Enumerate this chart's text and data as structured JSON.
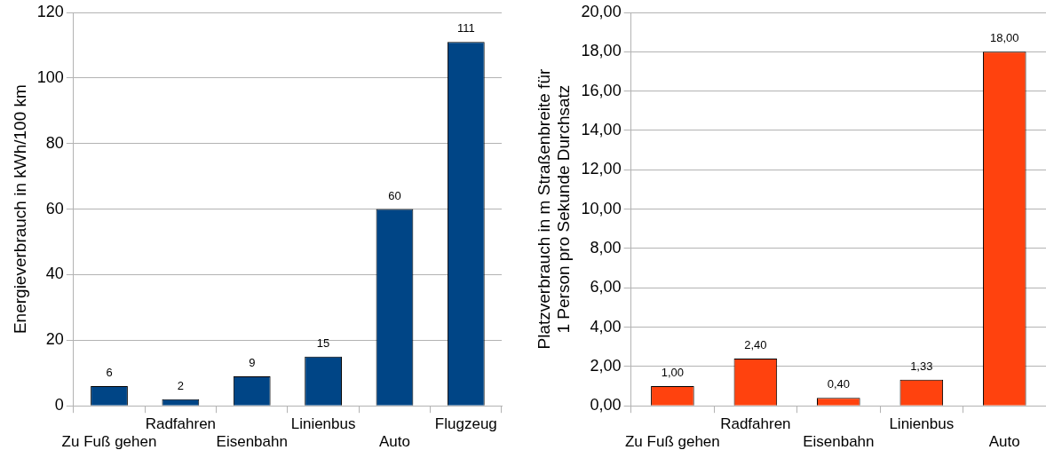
{
  "chart_data": [
    {
      "type": "bar",
      "ylabel": "Energieverbrauch in kWh/100 km",
      "categories": [
        "Zu Fuß gehen",
        "Radfahren",
        "Eisenbahn",
        "Linienbus",
        "Auto",
        "Flugzeug"
      ],
      "values": [
        6,
        2,
        9,
        15,
        60,
        111
      ],
      "color": "#004586",
      "ylim": [
        0,
        120
      ],
      "yticks": [
        0,
        20,
        40,
        60,
        80,
        100,
        120
      ],
      "grid": "y",
      "legend": false,
      "data_labels": true
    },
    {
      "type": "bar",
      "ylabel": "Platzverbrauch in m Straßenbreite für\n1 Person pro Sekunde Durchsatz",
      "categories": [
        "Zu Fuß gehen",
        "Radfahren",
        "Eisenbahn",
        "Linienbus",
        "Auto"
      ],
      "values": [
        1,
        2.4,
        0.4,
        1.33,
        18
      ],
      "value_labels": [
        "1,00",
        "2,40",
        "0,40",
        "1,33",
        "18,00"
      ],
      "color": "#ff420e",
      "ylim": [
        0,
        20
      ],
      "yticks": [
        {
          "value": 0,
          "label": "0,00"
        },
        {
          "value": 2,
          "label": "2,00"
        },
        {
          "value": 4,
          "label": "4,00"
        },
        {
          "value": 6,
          "label": "6,00"
        },
        {
          "value": 8,
          "label": "8,00"
        },
        {
          "value": 10,
          "label": "10,00"
        },
        {
          "value": 12,
          "label": "12,00"
        },
        {
          "value": 14,
          "label": "14,00"
        },
        {
          "value": 16,
          "label": "16,00"
        },
        {
          "value": 18,
          "label": "18,00"
        },
        {
          "value": 20,
          "label": "20,00"
        }
      ],
      "grid": "y",
      "legend": false
    }
  ]
}
